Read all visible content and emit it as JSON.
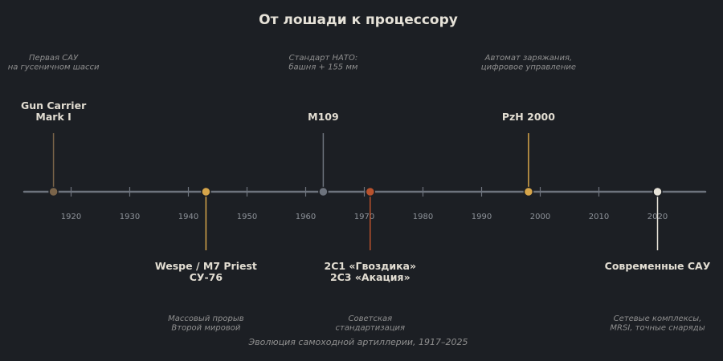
{
  "title": "От лошади к процессору",
  "caption": "Эволюция самоходной артиллерии, 1917–2025",
  "axis": {
    "range": [
      1912,
      2028
    ],
    "ticks": [
      1920,
      1930,
      1940,
      1950,
      1960,
      1970,
      1980,
      1990,
      2000,
      2010,
      2020
    ]
  },
  "events": [
    {
      "year": 1917,
      "side": "above",
      "color": "#7a644a",
      "label": [
        "Gun Carrier",
        "Mark I"
      ],
      "note": [
        "Первая САУ",
        "на гусеничном шасси"
      ]
    },
    {
      "year": 1943,
      "side": "below",
      "color": "#d6a54a",
      "label": [
        "Wespe / M7 Priest",
        "СУ-76"
      ],
      "note": [
        "Массовый прорыв",
        "Второй мировой"
      ]
    },
    {
      "year": 1963,
      "side": "above",
      "color": "#6d737d",
      "label": [
        "M109"
      ],
      "note": [
        "Стандарт НАТО:",
        "башня + 155 мм"
      ]
    },
    {
      "year": 1971,
      "side": "below",
      "color": "#b8522d",
      "label": [
        "2С1 «Гвоздика»",
        "2С3 «Акация»"
      ],
      "note": [
        "Советская",
        "стандартизация"
      ]
    },
    {
      "year": 1998,
      "side": "above",
      "color": "#d6a54a",
      "label": [
        "PzH 2000"
      ],
      "note": [
        "Автомат заряжания,",
        "цифровое управление"
      ]
    },
    {
      "year": 2020,
      "side": "below",
      "color": "#e6e2d8",
      "label": [
        "Современные САУ"
      ],
      "note": [
        "Сетевые комплексы,",
        "MRSI, точные снаряды"
      ]
    }
  ]
}
